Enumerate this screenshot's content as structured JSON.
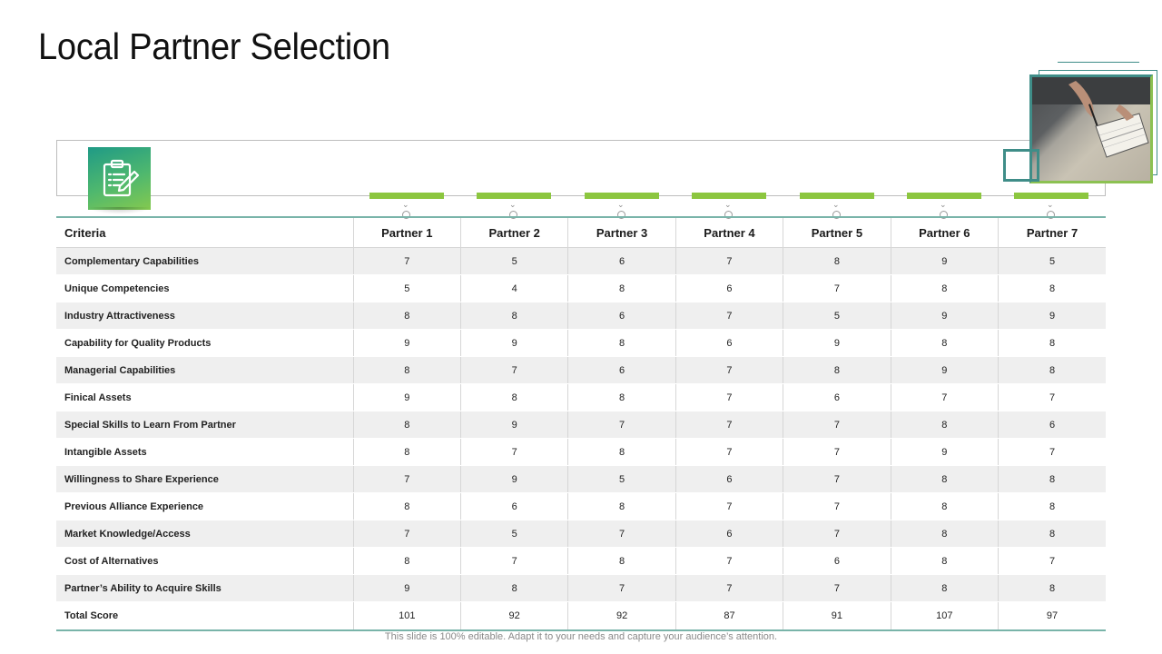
{
  "title": "Local Partner Selection",
  "icons": {
    "header_tile": "clipboard-pencil-icon",
    "photo": "hands-writing-notebook-photo"
  },
  "colors": {
    "accent_green": "#8cc63f",
    "accent_teal": "#3f8d88"
  },
  "table": {
    "headers": [
      "Criteria",
      "Partner 1",
      "Partner 2",
      "Partner 3",
      "Partner 4",
      "Partner 5",
      "Partner 6",
      "Partner 7"
    ],
    "rows": [
      [
        "Complementary Capabilities",
        "7",
        "5",
        "6",
        "7",
        "8",
        "9",
        "5"
      ],
      [
        "Unique Competencies",
        "5",
        "4",
        "8",
        "6",
        "7",
        "8",
        "8"
      ],
      [
        "Industry Attractiveness",
        "8",
        "8",
        "6",
        "7",
        "5",
        "9",
        "9"
      ],
      [
        "Capability for Quality Products",
        "9",
        "9",
        "8",
        "6",
        "9",
        "8",
        "8"
      ],
      [
        "Managerial Capabilities",
        "8",
        "7",
        "6",
        "7",
        "8",
        "9",
        "8"
      ],
      [
        "Finical Assets",
        "9",
        "8",
        "8",
        "7",
        "6",
        "7",
        "7"
      ],
      [
        "Special Skills to Learn From Partner",
        "8",
        "9",
        "7",
        "7",
        "7",
        "8",
        "6"
      ],
      [
        "Intangible Assets",
        "8",
        "7",
        "8",
        "7",
        "7",
        "9",
        "7"
      ],
      [
        "Willingness to Share Experience",
        "7",
        "9",
        "5",
        "6",
        "7",
        "8",
        "8"
      ],
      [
        "Previous Alliance Experience",
        "8",
        "6",
        "8",
        "7",
        "7",
        "8",
        "8"
      ],
      [
        "Market Knowledge/Access",
        "7",
        "5",
        "7",
        "6",
        "7",
        "8",
        "8"
      ],
      [
        "Cost of Alternatives",
        "8",
        "7",
        "8",
        "7",
        "6",
        "8",
        "7"
      ],
      [
        "Partner’s Ability to Acquire Skills",
        "9",
        "8",
        "7",
        "7",
        "7",
        "8",
        "8"
      ]
    ],
    "total": [
      "Total Score",
      "101",
      "92",
      "92",
      "87",
      "91",
      "107",
      "97"
    ]
  },
  "footer": "This slide is 100% editable. Adapt it to your needs and capture your audience’s attention."
}
